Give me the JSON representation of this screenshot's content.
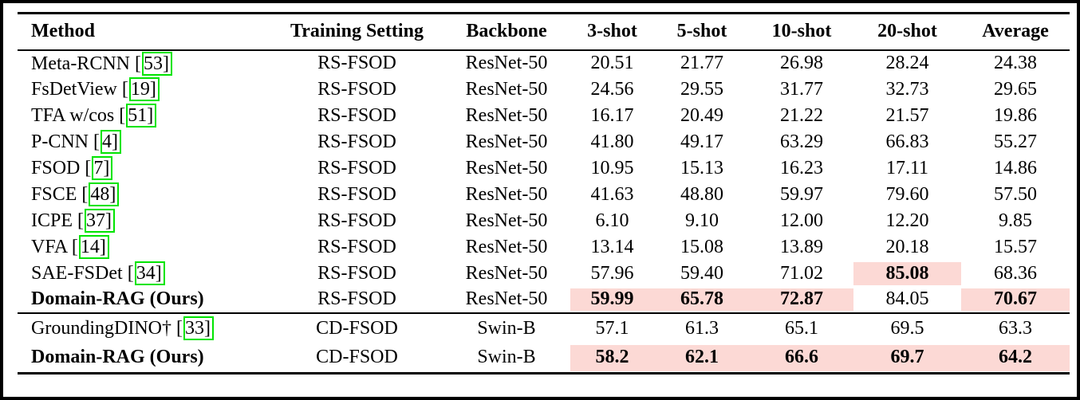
{
  "styles": {
    "highlight_color": "#fcd9d5",
    "citation_box_color": "#00e400",
    "rule_color": "#000000"
  },
  "table": {
    "header": {
      "labels": [
        "Method",
        "Training Setting",
        "Backbone",
        "3-shot",
        "5-shot",
        "10-shot",
        "20-shot",
        "Average"
      ]
    },
    "sections": [
      {
        "rows": [
          {
            "method": "Meta-RCNN",
            "cite": "53",
            "method_bold": false,
            "setting": "RS-FSOD",
            "backbone": "ResNet-50",
            "values": [
              "20.51",
              "21.77",
              "26.98",
              "28.24",
              "24.38"
            ],
            "bold_cols": [],
            "hl_cols": []
          },
          {
            "method": "FsDetView",
            "cite": "19",
            "method_bold": false,
            "setting": "RS-FSOD",
            "backbone": "ResNet-50",
            "values": [
              "24.56",
              "29.55",
              "31.77",
              "32.73",
              "29.65"
            ],
            "bold_cols": [],
            "hl_cols": []
          },
          {
            "method": "TFA w/cos",
            "cite": "51",
            "method_bold": false,
            "setting": "RS-FSOD",
            "backbone": "ResNet-50",
            "values": [
              "16.17",
              "20.49",
              "21.22",
              "21.57",
              "19.86"
            ],
            "bold_cols": [],
            "hl_cols": []
          },
          {
            "method": "P-CNN",
            "cite": "4",
            "method_bold": false,
            "setting": "RS-FSOD",
            "backbone": "ResNet-50",
            "values": [
              "41.80",
              "49.17",
              "63.29",
              "66.83",
              "55.27"
            ],
            "bold_cols": [],
            "hl_cols": []
          },
          {
            "method": "FSOD",
            "cite": "7",
            "method_bold": false,
            "setting": "RS-FSOD",
            "backbone": "ResNet-50",
            "values": [
              "10.95",
              "15.13",
              "16.23",
              "17.11",
              "14.86"
            ],
            "bold_cols": [],
            "hl_cols": []
          },
          {
            "method": "FSCE",
            "cite": "48",
            "method_bold": false,
            "setting": "RS-FSOD",
            "backbone": "ResNet-50",
            "values": [
              "41.63",
              "48.80",
              "59.97",
              "79.60",
              "57.50"
            ],
            "bold_cols": [],
            "hl_cols": []
          },
          {
            "method": "ICPE",
            "cite": "37",
            "method_bold": false,
            "setting": "RS-FSOD",
            "backbone": "ResNet-50",
            "values": [
              "6.10",
              "9.10",
              "12.00",
              "12.20",
              "9.85"
            ],
            "bold_cols": [],
            "hl_cols": []
          },
          {
            "method": "VFA",
            "cite": "14",
            "method_bold": false,
            "setting": "RS-FSOD",
            "backbone": "ResNet-50",
            "values": [
              "13.14",
              "15.08",
              "13.89",
              "20.18",
              "15.57"
            ],
            "bold_cols": [],
            "hl_cols": []
          },
          {
            "method": "SAE-FSDet",
            "cite": "34",
            "method_bold": false,
            "setting": "RS-FSOD",
            "backbone": "ResNet-50",
            "values": [
              "57.96",
              "59.40",
              "71.02",
              "85.08",
              "68.36"
            ],
            "bold_cols": [
              3
            ],
            "hl_cols": [
              3
            ]
          },
          {
            "method": "Domain-RAG (Ours)",
            "cite": null,
            "method_bold": true,
            "setting": "RS-FSOD",
            "backbone": "ResNet-50",
            "values": [
              "59.99",
              "65.78",
              "72.87",
              "84.05",
              "70.67"
            ],
            "bold_cols": [
              0,
              1,
              2,
              4
            ],
            "hl_cols": [
              0,
              1,
              2,
              4
            ]
          }
        ]
      },
      {
        "rows": [
          {
            "method": "GroundingDINO†",
            "cite": "33",
            "method_bold": false,
            "setting": "CD-FSOD",
            "backbone": "Swin-B",
            "values": [
              "57.1",
              "61.3",
              "65.1",
              "69.5",
              "63.3"
            ],
            "bold_cols": [],
            "hl_cols": []
          },
          {
            "method": "Domain-RAG (Ours)",
            "cite": null,
            "method_bold": true,
            "setting": "CD-FSOD",
            "backbone": "Swin-B",
            "values": [
              "58.2",
              "62.1",
              "66.6",
              "69.7",
              "64.2"
            ],
            "bold_cols": [
              0,
              1,
              2,
              3,
              4
            ],
            "hl_cols": [
              0,
              1,
              2,
              3,
              4
            ]
          }
        ]
      }
    ]
  }
}
